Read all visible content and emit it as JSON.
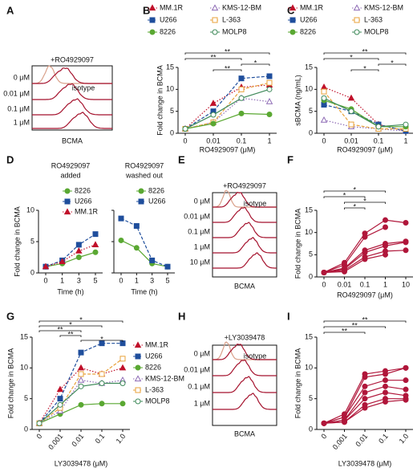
{
  "chart_data": [
    {
      "type": "density",
      "panel": "A",
      "title": "+RO4929097",
      "labels": [
        "0 μM",
        "0.01 μM",
        "0.1 μM",
        "1 μM"
      ],
      "annotation": "isotype",
      "x_label": "BCMA",
      "color": "#a5122d",
      "isotype_color": "#d9a08a"
    },
    {
      "type": "line",
      "panel": "B",
      "x_label": "RO4929097 (μM)",
      "y_label": "Fold change in BCMA",
      "categories": [
        "0",
        "0.01",
        "0.1",
        "1"
      ],
      "ylim": [
        0,
        15
      ],
      "yticks": [
        0,
        5,
        10,
        15
      ],
      "legend": "top",
      "annotations": [
        "**",
        "**",
        "*",
        "**"
      ],
      "series": [
        {
          "name": "MM.1R",
          "color": "#c0102a",
          "marker": "triangle",
          "filled": true,
          "dash": "dotted",
          "values": [
            1,
            6.8,
            10.5,
            11
          ]
        },
        {
          "name": "KMS-12-BM",
          "color": "#8e6bb5",
          "marker": "triangle",
          "filled": false,
          "dash": "dotted",
          "values": [
            1,
            2.5,
            8,
            7.2
          ]
        },
        {
          "name": "U266",
          "color": "#1f4e9c",
          "marker": "square",
          "filled": true,
          "dash": "dashed",
          "values": [
            1,
            5,
            12.5,
            13
          ]
        },
        {
          "name": "L-363",
          "color": "#e8a23a",
          "marker": "square",
          "filled": false,
          "dash": "dashed",
          "values": [
            1,
            2.5,
            10,
            11.5
          ]
        },
        {
          "name": "8226",
          "color": "#5aa832",
          "marker": "circle",
          "filled": true,
          "dash": "solid",
          "values": [
            1,
            2.2,
            4.5,
            4.3
          ]
        },
        {
          "name": "MOLP8",
          "color": "#3f8a5a",
          "marker": "circle",
          "filled": false,
          "dash": "solid",
          "values": [
            1,
            4.2,
            8,
            10
          ]
        }
      ]
    },
    {
      "type": "line",
      "panel": "C",
      "x_label": "RO4929097 (μM)",
      "y_label": "sBCMA (ng/mL)",
      "categories": [
        "0",
        "0.01",
        "0.1",
        "1"
      ],
      "ylim": [
        0,
        15
      ],
      "yticks": [
        0,
        5,
        10,
        15
      ],
      "legend": "top",
      "annotations": [
        "**",
        "*",
        "*",
        "*"
      ],
      "series": [
        {
          "name": "MM.1R",
          "color": "#c0102a",
          "marker": "triangle",
          "filled": true,
          "dash": "dotted",
          "values": [
            10.5,
            8,
            2,
            0.5
          ]
        },
        {
          "name": "KMS-12-BM",
          "color": "#8e6bb5",
          "marker": "triangle",
          "filled": false,
          "dash": "dotted",
          "values": [
            3,
            1.5,
            1,
            0.5
          ]
        },
        {
          "name": "U266",
          "color": "#1f4e9c",
          "marker": "square",
          "filled": true,
          "dash": "dashed",
          "values": [
            6.5,
            5,
            2,
            0.5
          ]
        },
        {
          "name": "L-363",
          "color": "#e8a23a",
          "marker": "square",
          "filled": false,
          "dash": "dashed",
          "values": [
            9.5,
            2,
            1,
            1
          ]
        },
        {
          "name": "8226",
          "color": "#5aa832",
          "marker": "circle",
          "filled": true,
          "dash": "solid",
          "values": [
            7.5,
            5.5,
            1.5,
            1.5
          ]
        },
        {
          "name": "MOLP8",
          "color": "#3f8a5a",
          "marker": "circle",
          "filled": false,
          "dash": "solid",
          "values": [
            8,
            5,
            1.5,
            2
          ]
        }
      ]
    },
    {
      "type": "line",
      "panel": "D",
      "title": [
        "RO4929097",
        "added"
      ],
      "x_label": "Time (h)",
      "y_label": "Fold change in BCMA",
      "categories": [
        "0",
        "1",
        "3",
        "5"
      ],
      "ylim": [
        0,
        10
      ],
      "yticks": [
        0,
        5,
        10
      ],
      "legend": "top-right",
      "series": [
        {
          "name": "8226",
          "color": "#5aa832",
          "marker": "circle",
          "filled": true,
          "dash": "solid",
          "values": [
            1,
            1.5,
            2.5,
            3.3
          ]
        },
        {
          "name": "U266",
          "color": "#1f4e9c",
          "marker": "square",
          "filled": true,
          "dash": "dashed",
          "values": [
            1,
            2,
            4.5,
            6.2
          ]
        },
        {
          "name": "MM.1R",
          "color": "#c0102a",
          "marker": "triangle",
          "filled": true,
          "dash": "dotted",
          "values": [
            1,
            1.8,
            3.5,
            4.5
          ]
        }
      ]
    },
    {
      "type": "line",
      "title": [
        "RO4929097",
        "washed out"
      ],
      "x_label": "Time (h)",
      "categories": [
        "0",
        "1",
        "3",
        "5"
      ],
      "ylim": [
        0,
        10
      ],
      "legend": "top-right",
      "series": [
        {
          "name": "8226",
          "color": "#5aa832",
          "marker": "circle",
          "filled": true,
          "dash": "solid",
          "values": [
            5.2,
            4,
            1.5,
            1
          ]
        },
        {
          "name": "U266",
          "color": "#1f4e9c",
          "marker": "square",
          "filled": true,
          "dash": "dashed",
          "values": [
            8.7,
            7.5,
            2,
            1
          ]
        }
      ]
    },
    {
      "type": "density",
      "panel": "E",
      "title": "+RO4929097",
      "labels": [
        "0 μM",
        "0.01 μM",
        "0.1 μM",
        "1 μM",
        "10 μM"
      ],
      "annotation": "isotype",
      "x_label": "BCMA",
      "color": "#a5122d",
      "isotype_color": "#d9a08a"
    },
    {
      "type": "line",
      "panel": "F",
      "x_label": "RO4929097 (μM)",
      "y_label": "Fold change in BCMA",
      "categories": [
        "0",
        "0.01",
        "0.1",
        "1",
        "10"
      ],
      "ylim": [
        0,
        15
      ],
      "yticks": [
        0,
        5,
        10,
        15
      ],
      "annotations": [
        "*",
        "*",
        "*",
        "*"
      ],
      "series": [
        {
          "color": "#b0163a",
          "marker": "circle",
          "filled": true,
          "dash": "solid",
          "values": [
            1,
            3.2,
            9.8,
            12.8,
            12.2
          ]
        },
        {
          "color": "#b0163a",
          "marker": "circle",
          "filled": true,
          "dash": "solid",
          "values": [
            1,
            2.7,
            9,
            11.2,
            null
          ]
        },
        {
          "color": "#b0163a",
          "marker": "circle",
          "filled": true,
          "dash": "solid",
          "values": [
            1,
            2,
            6,
            7.5,
            8
          ]
        },
        {
          "color": "#b0163a",
          "marker": "circle",
          "filled": true,
          "dash": "solid",
          "values": [
            1,
            1.8,
            5.5,
            7,
            7.8
          ]
        },
        {
          "color": "#b0163a",
          "marker": "circle",
          "filled": true,
          "dash": "solid",
          "values": [
            1,
            1.5,
            4.5,
            5.8,
            6
          ]
        },
        {
          "color": "#b0163a",
          "marker": "circle",
          "filled": true,
          "dash": "solid",
          "values": [
            1,
            1.2,
            4,
            5,
            null
          ]
        }
      ]
    },
    {
      "type": "line",
      "panel": "G",
      "x_label": "LY3039478 (μM)",
      "y_label": "Fold change in BCMA",
      "categories": [
        "0",
        "0.001",
        "0.01",
        "0.1",
        "1.0"
      ],
      "ylim": [
        0,
        15
      ],
      "yticks": [
        0,
        5,
        10,
        15
      ],
      "legend": "right",
      "annotations": [
        "*",
        "*",
        "**",
        "**",
        "*"
      ],
      "series": [
        {
          "name": "MM.1R",
          "color": "#c0102a",
          "marker": "triangle",
          "filled": true,
          "dash": "dotted",
          "values": [
            1,
            6.5,
            10,
            9,
            10
          ]
        },
        {
          "name": "U266",
          "color": "#1f4e9c",
          "marker": "square",
          "filled": true,
          "dash": "dashed",
          "values": [
            1,
            5,
            12.5,
            14,
            14
          ]
        },
        {
          "name": "8226",
          "color": "#5aa832",
          "marker": "circle",
          "filled": true,
          "dash": "solid",
          "values": [
            1,
            2.5,
            4,
            4.2,
            4.2
          ]
        },
        {
          "name": "KMS-12-BM",
          "color": "#8e6bb5",
          "marker": "triangle",
          "filled": false,
          "dash": "dotted",
          "values": [
            1,
            3,
            8,
            7.5,
            8
          ]
        },
        {
          "name": "L-363",
          "color": "#e8a23a",
          "marker": "square",
          "filled": false,
          "dash": "dashed",
          "values": [
            1,
            3.5,
            9,
            9,
            11.5
          ]
        },
        {
          "name": "MOLP8",
          "color": "#3f8a5a",
          "marker": "circle",
          "filled": false,
          "dash": "solid",
          "values": [
            1,
            4,
            7,
            7.5,
            7.5
          ]
        }
      ]
    },
    {
      "type": "density",
      "panel": "H",
      "title": "+LY3039478",
      "labels": [
        "0 μM",
        "0.01 μM",
        "0.1 μM",
        "1 μM"
      ],
      "annotation": "isotype",
      "x_label": "BCMA",
      "color": "#a5122d",
      "isotype_color": "#d9a08a"
    },
    {
      "type": "line",
      "panel": "I",
      "x_label": "LY3039478 (μM)",
      "y_label": "Fold change in BCMA",
      "categories": [
        "0",
        "0.001",
        "0.01",
        "0.1",
        "1.0"
      ],
      "ylim": [
        0,
        15
      ],
      "yticks": [
        0,
        5,
        10,
        15
      ],
      "annotations": [
        "**",
        "**",
        "**"
      ],
      "series": [
        {
          "color": "#b0163a",
          "marker": "circle",
          "filled": true,
          "dash": "solid",
          "values": [
            1,
            2.5,
            9,
            9.5,
            10
          ]
        },
        {
          "color": "#b0163a",
          "marker": "circle",
          "filled": true,
          "dash": "solid",
          "values": [
            1,
            2,
            8.5,
            9,
            10
          ]
        },
        {
          "color": "#b0163a",
          "marker": "circle",
          "filled": true,
          "dash": "solid",
          "values": [
            1,
            2,
            7,
            8,
            8
          ]
        },
        {
          "color": "#b0163a",
          "marker": "circle",
          "filled": true,
          "dash": "solid",
          "values": [
            1,
            1.5,
            6,
            7,
            6.5
          ]
        },
        {
          "color": "#b0163a",
          "marker": "circle",
          "filled": true,
          "dash": "solid",
          "values": [
            1,
            1.5,
            5,
            6,
            5.5
          ]
        },
        {
          "color": "#b0163a",
          "marker": "circle",
          "filled": true,
          "dash": "solid",
          "values": [
            1,
            1.2,
            4,
            5,
            5
          ]
        },
        {
          "color": "#b0163a",
          "marker": "circle",
          "filled": true,
          "dash": "solid",
          "values": [
            1,
            1.2,
            3.5,
            4.5,
            4.8
          ]
        }
      ]
    }
  ]
}
